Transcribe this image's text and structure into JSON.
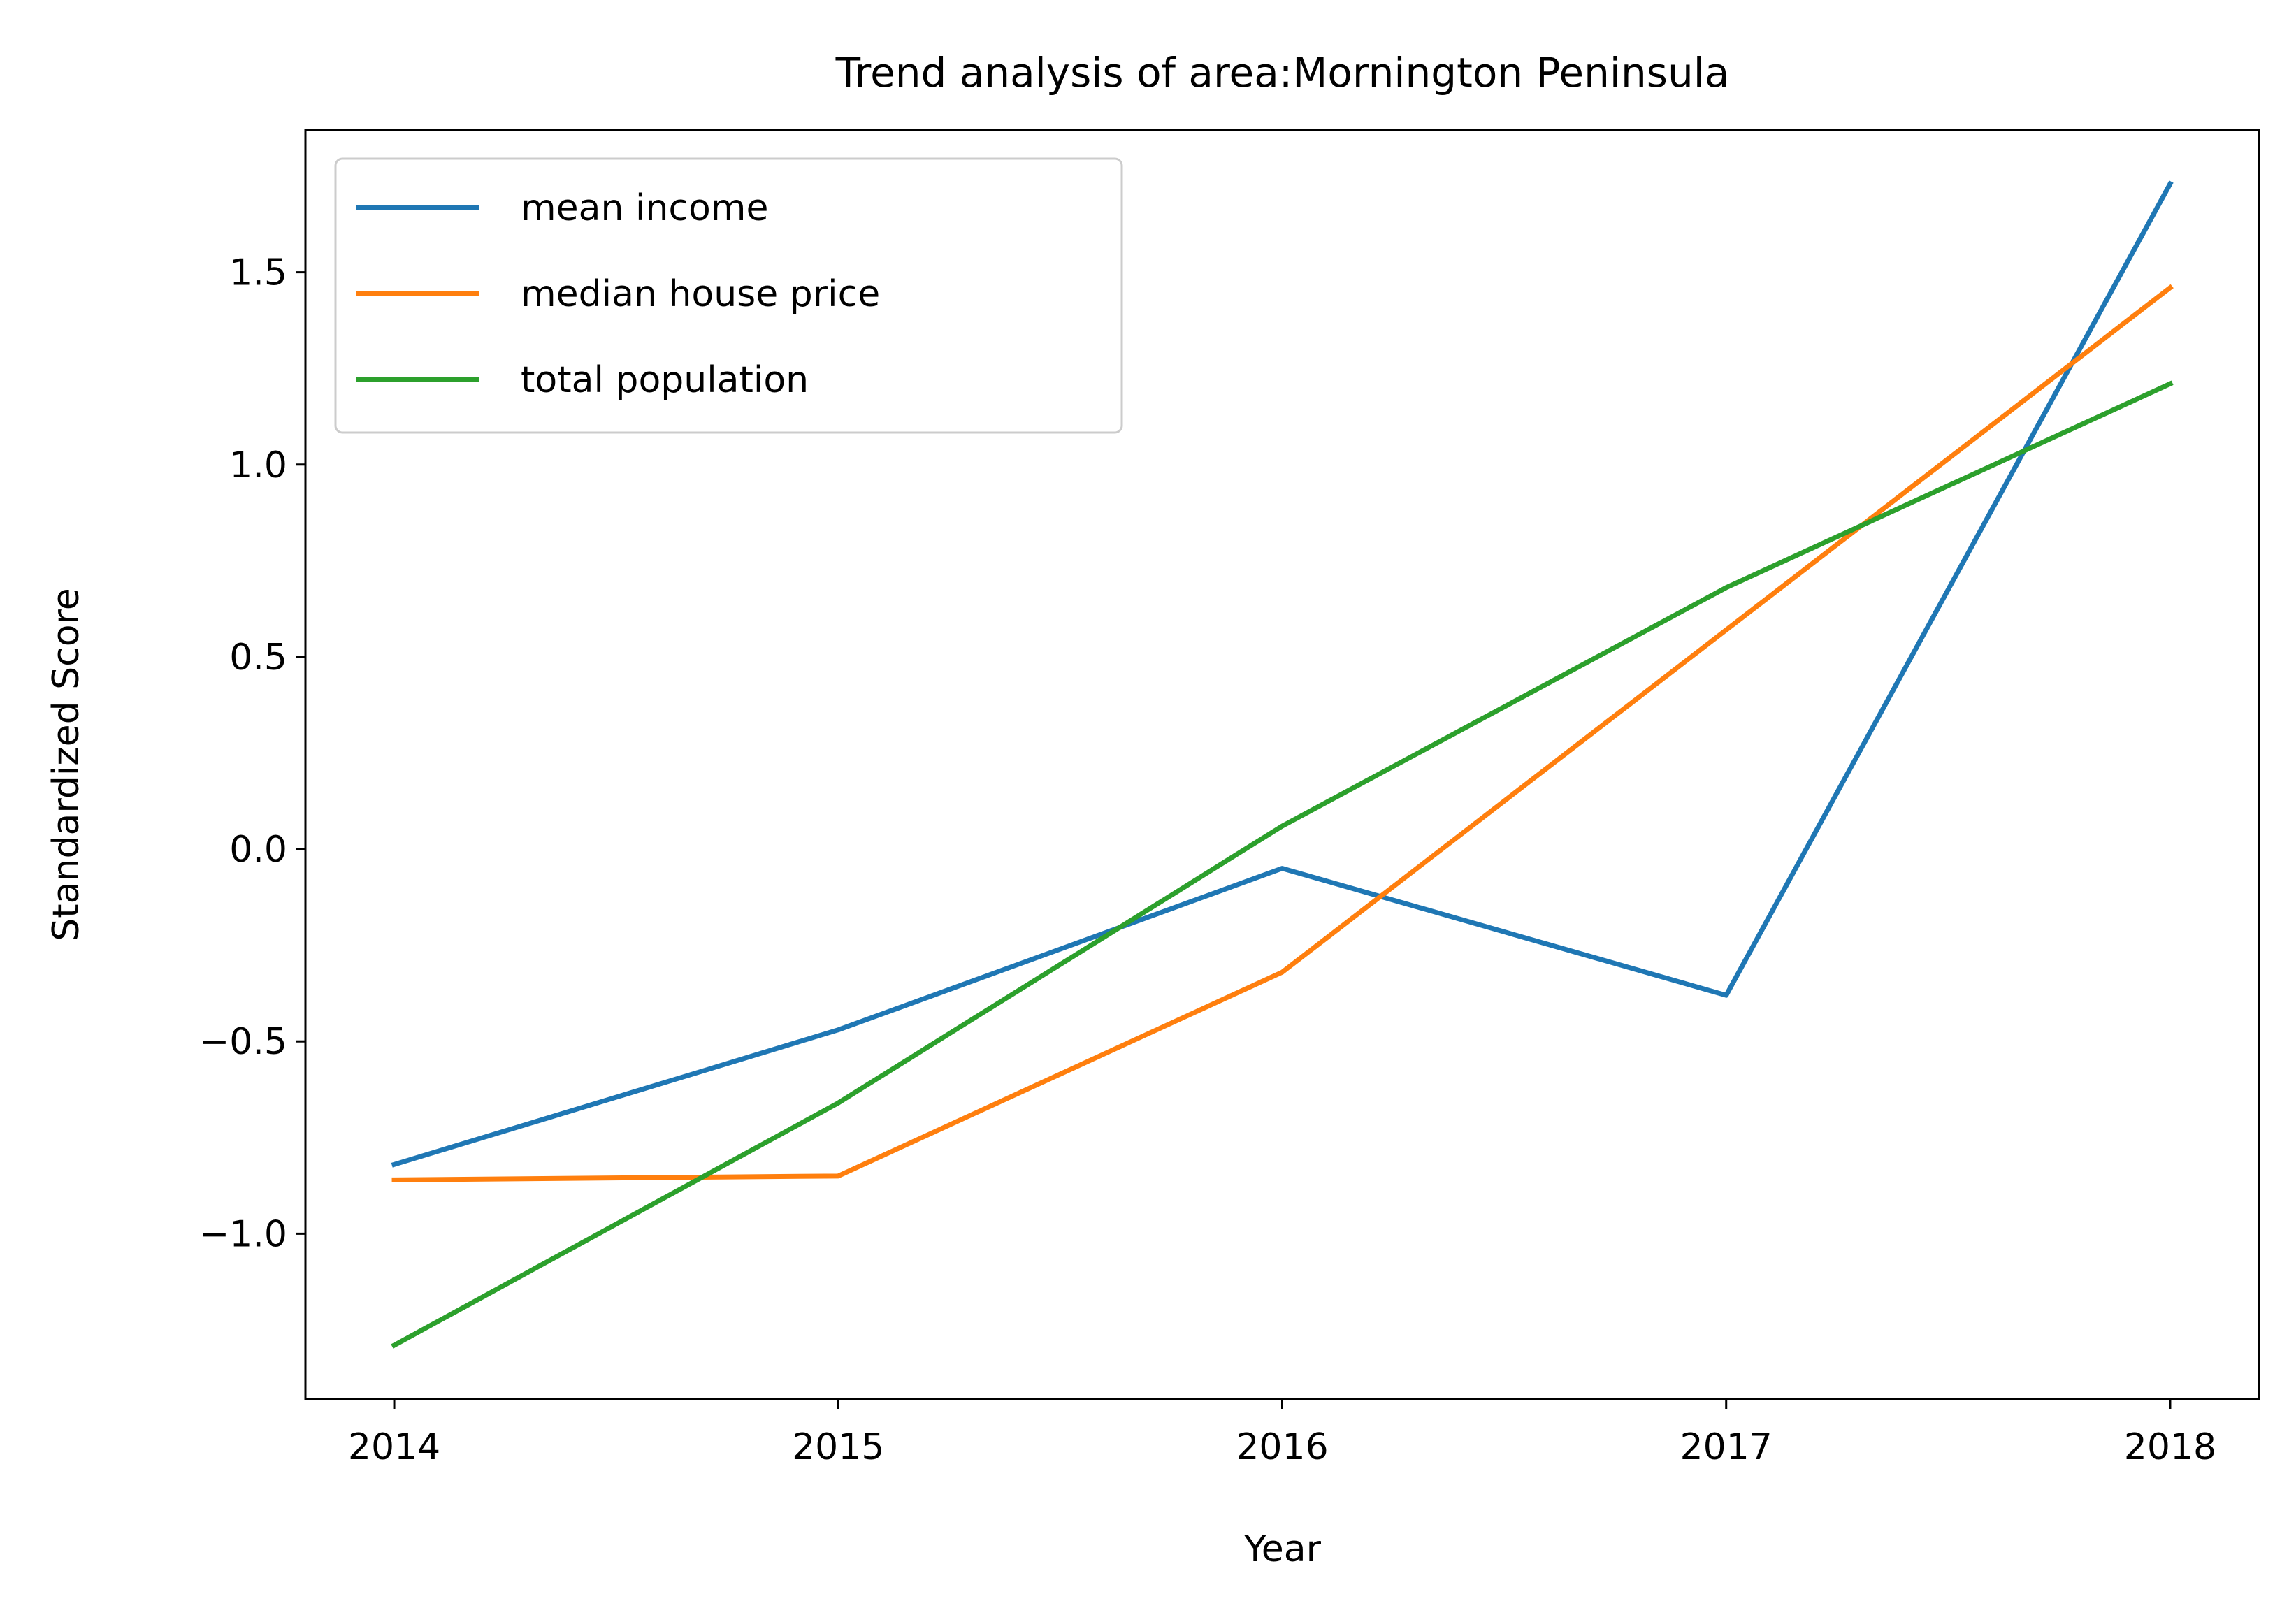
{
  "chart_data": {
    "type": "line",
    "title": "Trend analysis of area:Mornington Peninsula",
    "xlabel": "Year",
    "ylabel": "Standardized Score",
    "x": [
      2014,
      2015,
      2016,
      2017,
      2018
    ],
    "xticks": [
      "2014",
      "2015",
      "2016",
      "2017",
      "2018"
    ],
    "yticks": [
      -1.0,
      -0.5,
      0.0,
      0.5,
      1.0,
      1.5
    ],
    "ytick_labels": [
      "−1.0",
      "−0.5",
      "0.0",
      "0.5",
      "1.0",
      "1.5"
    ],
    "xlim": [
      2013.8,
      2018.2
    ],
    "ylim": [
      -1.43,
      1.87
    ],
    "grid": false,
    "legend_position": "upper-left",
    "series": [
      {
        "name": "mean income",
        "color": "#1f77b4",
        "values": [
          -0.82,
          -0.47,
          -0.05,
          -0.38,
          1.73
        ]
      },
      {
        "name": "median house price",
        "color": "#ff7f0e",
        "values": [
          -0.86,
          -0.85,
          -0.32,
          0.57,
          1.46
        ]
      },
      {
        "name": "total population",
        "color": "#2ca02c",
        "values": [
          -1.29,
          -0.66,
          0.06,
          0.68,
          1.21
        ]
      }
    ]
  }
}
